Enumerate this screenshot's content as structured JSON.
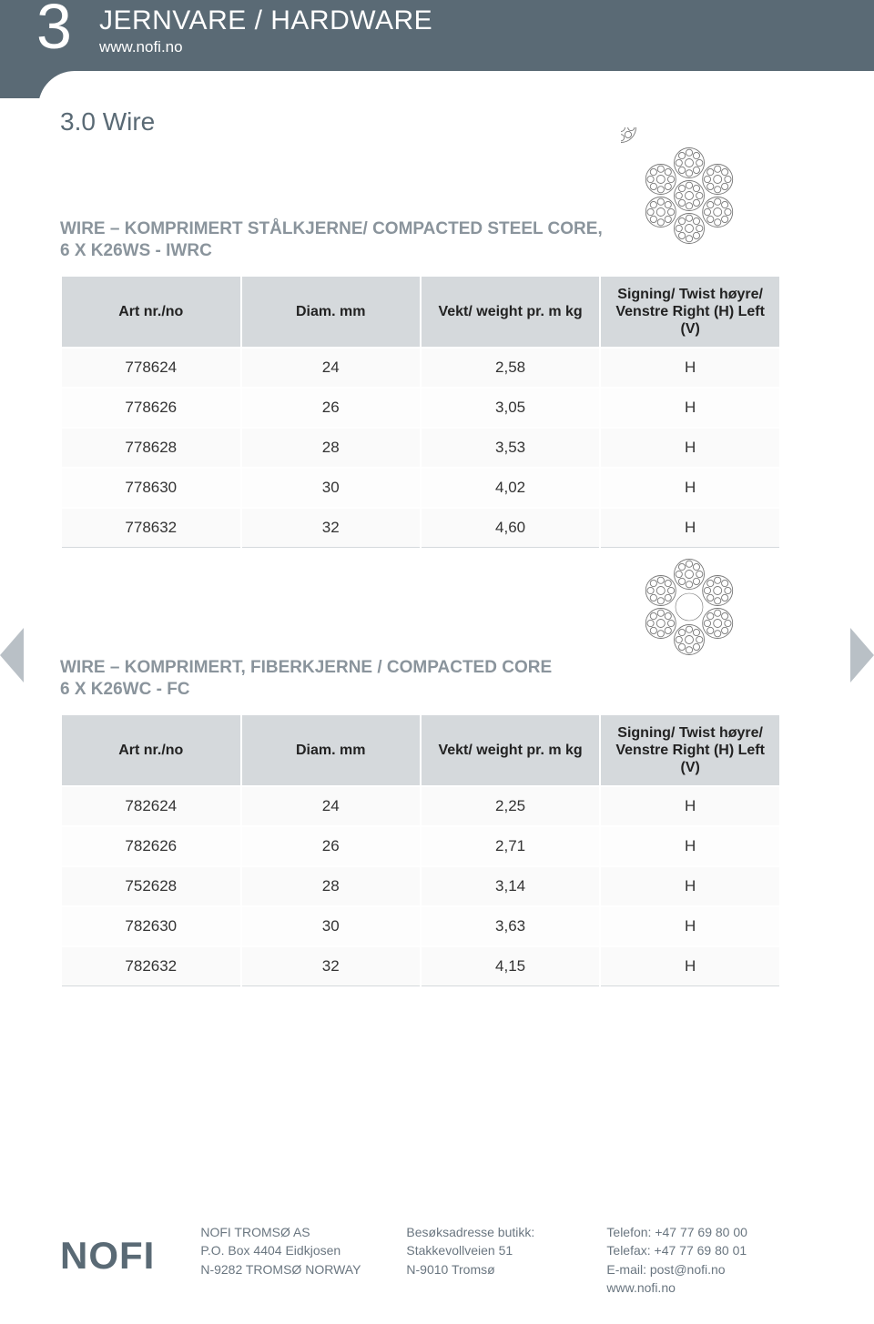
{
  "header": {
    "chapter_number": "3",
    "chapter_title": "JERNVARE / HARDWARE",
    "url": "www.nofi.no"
  },
  "section_title": "3.0 Wire",
  "colors": {
    "header_bg": "#5a6a75",
    "header_text": "#ffffff",
    "muted_heading": "#8a949c",
    "table_header_bg": "#d5d9dc",
    "table_border": "#ffffff",
    "row_divider": "#d5d9dc",
    "arrow": "#b9c0c6",
    "body_text": "#333333",
    "footer_text": "#6a7680"
  },
  "typography": {
    "chapter_number_fontsize": 70,
    "chapter_title_fontsize": 30,
    "section_title_fontsize": 28,
    "block_title_fontsize": 19,
    "table_fontsize": 17,
    "footer_fontsize": 14
  },
  "tables": [
    {
      "title_line1": "WIRE – KOMPRIMERT STÅLKJERNE/ COMPACTED  STEEL CORE,",
      "title_line2": "6 X K26WS - IWRC",
      "illustration": "steel-core",
      "columns": [
        "Art nr./no",
        "Diam. mm",
        "Vekt/ weight pr. m kg",
        "Signing/ Twist høyre/ Venstre Right (H) Left (V)"
      ],
      "rows": [
        [
          "778624",
          "24",
          "2,58",
          "H"
        ],
        [
          "778626",
          "26",
          "3,05",
          "H"
        ],
        [
          "778628",
          "28",
          "3,53",
          "H"
        ],
        [
          "778630",
          "30",
          "4,02",
          "H"
        ],
        [
          "778632",
          "32",
          "4,60",
          "H"
        ]
      ]
    },
    {
      "title_line1": "WIRE – KOMPRIMERT, FIBERKJERNE  / COMPACTED CORE",
      "title_line2": "6 X K26WC - FC",
      "illustration": "fiber-core",
      "columns": [
        "Art nr./no",
        "Diam. mm",
        "Vekt/ weight pr. m kg",
        "Signing/ Twist høyre/ Venstre Right (H) Left (V)"
      ],
      "rows": [
        [
          "782624",
          "24",
          "2,25",
          "H"
        ],
        [
          "782626",
          "26",
          "2,71",
          "H"
        ],
        [
          "752628",
          "28",
          "3,14",
          "H"
        ],
        [
          "782630",
          "30",
          "3,63",
          "H"
        ],
        [
          "782632",
          "32",
          "4,15",
          "H"
        ]
      ]
    }
  ],
  "footer": {
    "logo_text": "NOFI",
    "col1": [
      "NOFI TROMSØ AS",
      "P.O. Box 4404  Eidkjosen",
      "N-9282 TROMSØ NORWAY"
    ],
    "col2": [
      "Besøksadresse butikk:",
      "Stakkevollveien 51",
      "N-9010 Tromsø"
    ],
    "col3": [
      "Telefon: +47 77 69 80 00",
      "Telefax: +47 77 69 80 01",
      "E-mail: post@nofi.no",
      "www.nofi.no"
    ]
  }
}
